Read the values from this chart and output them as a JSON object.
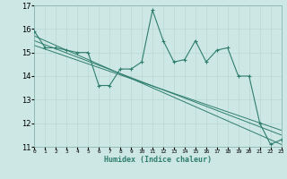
{
  "xlabel": "Humidex (Indice chaleur)",
  "ylabel": "",
  "background_color": "#cde8e4",
  "line_color": "#2e7d6e",
  "x_values": [
    0,
    1,
    2,
    3,
    4,
    5,
    6,
    7,
    8,
    9,
    10,
    11,
    12,
    13,
    14,
    15,
    16,
    17,
    18,
    19,
    20,
    21,
    22,
    23
  ],
  "series1": [
    15.9,
    15.2,
    15.2,
    15.1,
    15.0,
    15.0,
    13.6,
    13.6,
    14.3,
    14.3,
    14.6,
    16.8,
    15.5,
    14.6,
    14.7,
    15.5,
    14.6,
    15.1,
    15.2,
    14.0,
    14.0,
    12.0,
    11.1,
    11.3
  ],
  "trend_lines": [
    [
      15.7,
      11.1
    ],
    [
      15.5,
      11.5
    ],
    [
      15.3,
      11.7
    ]
  ],
  "ylim": [
    11,
    17
  ],
  "xlim": [
    0,
    23
  ],
  "yticks": [
    11,
    12,
    13,
    14,
    15,
    16,
    17
  ],
  "xticks": [
    0,
    1,
    2,
    3,
    4,
    5,
    6,
    7,
    8,
    9,
    10,
    11,
    12,
    13,
    14,
    15,
    16,
    17,
    18,
    19,
    20,
    21,
    22,
    23
  ],
  "grid_color": "#b8d8d4",
  "spine_color": "#7aada8"
}
